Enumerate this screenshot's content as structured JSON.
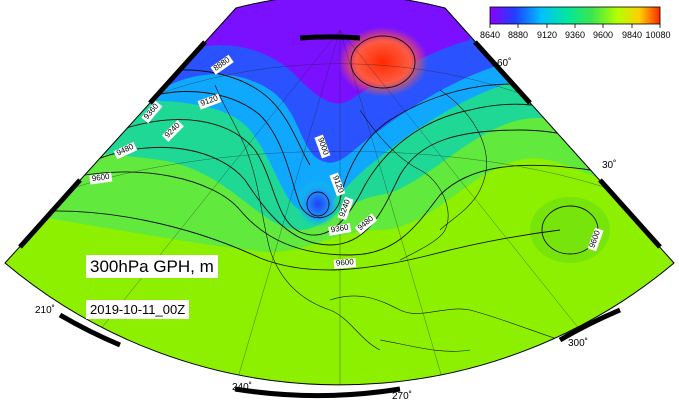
{
  "title": "300hPa GPH, m",
  "datetime": "2019-10-11_00Z",
  "colorbar": {
    "ticks": [
      "8640",
      "8880",
      "9120",
      "9360",
      "9600",
      "9840",
      "10080"
    ],
    "colors": [
      "#8a00ff",
      "#2040ff",
      "#00c0ff",
      "#00e6a0",
      "#3ce650",
      "#b4ff00",
      "#ffd000",
      "#ff2a00"
    ]
  },
  "graticule_labels": {
    "lon": [
      "210˚",
      "240˚",
      "270˚",
      "300˚"
    ],
    "lat": [
      "60˚",
      "30˚"
    ]
  },
  "contour_labels": [
    "8880",
    "9120",
    "9360",
    "9240",
    "9480",
    "9600",
    "9000",
    "9120",
    "9240",
    "9360",
    "9480",
    "9600",
    "9600"
  ],
  "icon": "polar-lambert-map"
}
